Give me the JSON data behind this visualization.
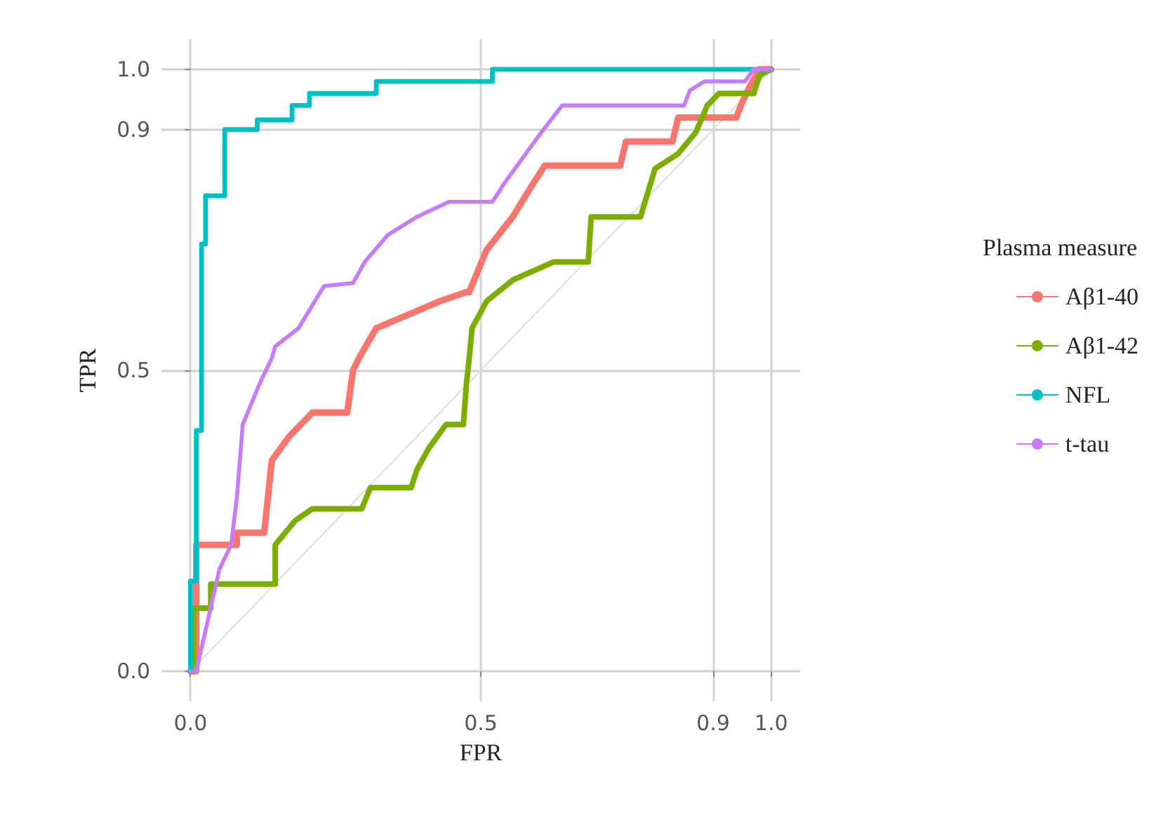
{
  "chart_data": {
    "type": "line",
    "xlabel": "FPR",
    "ylabel": "TPR",
    "legend_title": "Plasma measure",
    "legend": "right",
    "grid": true,
    "marker": "none",
    "line_style": "solid",
    "xlim": [
      -0.05,
      1.05
    ],
    "ylim": [
      -0.05,
      1.05
    ],
    "xticks": [
      {
        "value": 0,
        "label": "0.0"
      },
      {
        "value": 0.5,
        "label": "0.5"
      },
      {
        "value": 0.9,
        "label": "0.9"
      },
      {
        "value": 1,
        "label": "1.0"
      }
    ],
    "yticks": [
      {
        "value": 0,
        "label": "0.0"
      },
      {
        "value": 0.5,
        "label": "0.5"
      },
      {
        "value": 0.9,
        "label": "0.9"
      },
      {
        "value": 1,
        "label": "1.0"
      }
    ],
    "series": [
      {
        "color": "#dddddd",
        "x": [
          0,
          1
        ],
        "values": [
          0,
          1
        ]
      },
      {
        "name": "Aβ1-40",
        "color": "#f8766d",
        "x": [
          0,
          0.01,
          0.01,
          0.08,
          0.08,
          0.127,
          0.14,
          0.17,
          0.21,
          0.27,
          0.28,
          0.29,
          0.32,
          0.43,
          0.475,
          0.48,
          0.51,
          0.555,
          0.59,
          0.61,
          0.74,
          0.75,
          0.83,
          0.84,
          0.94,
          0.95,
          0.965,
          0.98,
          1
        ],
        "values": [
          0,
          0,
          0.21,
          0.21,
          0.23,
          0.23,
          0.35,
          0.39,
          0.43,
          0.43,
          0.5,
          0.52,
          0.57,
          0.615,
          0.63,
          0.63,
          0.7,
          0.755,
          0.81,
          0.84,
          0.84,
          0.88,
          0.88,
          0.92,
          0.92,
          0.945,
          0.975,
          1,
          1
        ]
      },
      {
        "name": "Aβ1-42",
        "color": "#7cae00",
        "x": [
          0,
          0.005,
          0.005,
          0.035,
          0.035,
          0.146,
          0.146,
          0.18,
          0.21,
          0.295,
          0.31,
          0.38,
          0.39,
          0.41,
          0.44,
          0.47,
          0.475,
          0.48,
          0.485,
          0.51,
          0.555,
          0.625,
          0.685,
          0.69,
          0.775,
          0.8,
          0.84,
          0.87,
          0.89,
          0.91,
          0.97,
          0.98,
          1
        ],
        "values": [
          0,
          0,
          0.105,
          0.105,
          0.145,
          0.145,
          0.21,
          0.25,
          0.27,
          0.27,
          0.305,
          0.305,
          0.335,
          0.37,
          0.41,
          0.41,
          0.475,
          0.52,
          0.57,
          0.615,
          0.65,
          0.68,
          0.68,
          0.755,
          0.755,
          0.835,
          0.86,
          0.895,
          0.94,
          0.96,
          0.96,
          0.99,
          1
        ]
      },
      {
        "name": "NFL",
        "color": "#00bfc4",
        "x": [
          0,
          0,
          0.01,
          0.01,
          0.019,
          0.019,
          0.026,
          0.026,
          0.059,
          0.059,
          0.115,
          0.115,
          0.175,
          0.175,
          0.205,
          0.205,
          0.32,
          0.32,
          0.52,
          0.52,
          1
        ],
        "values": [
          0,
          0.15,
          0.15,
          0.4,
          0.4,
          0.71,
          0.71,
          0.79,
          0.79,
          0.9,
          0.9,
          0.916,
          0.916,
          0.94,
          0.94,
          0.96,
          0.96,
          0.98,
          0.98,
          1,
          1
        ]
      },
      {
        "name": "t-tau",
        "color": "#c77cff",
        "x": [
          0,
          0.01,
          0.05,
          0.07,
          0.08,
          0.09,
          0.12,
          0.14,
          0.146,
          0.186,
          0.23,
          0.28,
          0.3,
          0.34,
          0.39,
          0.445,
          0.52,
          0.54,
          0.57,
          0.6,
          0.64,
          0.85,
          0.86,
          0.885,
          0.955,
          0.97,
          1
        ],
        "values": [
          0,
          0,
          0.17,
          0.21,
          0.29,
          0.41,
          0.48,
          0.52,
          0.54,
          0.57,
          0.64,
          0.645,
          0.68,
          0.725,
          0.755,
          0.78,
          0.78,
          0.81,
          0.85,
          0.89,
          0.94,
          0.94,
          0.965,
          0.98,
          0.98,
          1,
          1
        ]
      }
    ]
  }
}
